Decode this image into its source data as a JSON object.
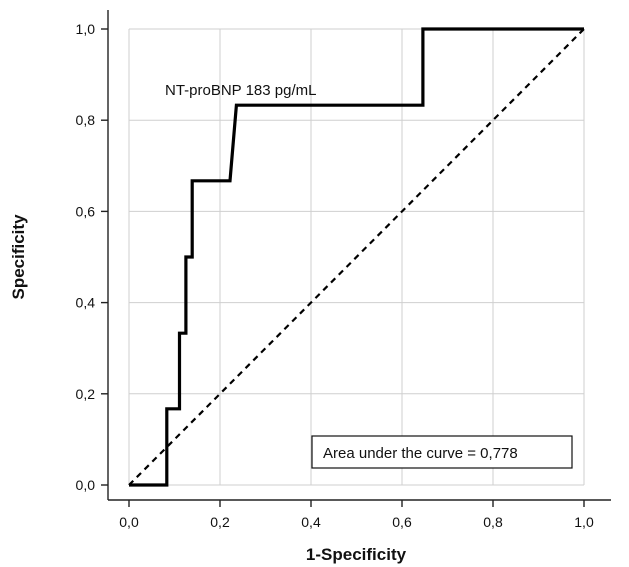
{
  "chart_data": {
    "type": "line",
    "title": "",
    "xlabel": "1-Specificity",
    "ylabel": "Specificity",
    "xlim": [
      0,
      1
    ],
    "ylim": [
      0,
      1
    ],
    "x_ticks": [
      0,
      0.2,
      0.4,
      0.6,
      0.8,
      1.0
    ],
    "y_ticks": [
      0,
      0.2,
      0.4,
      0.6,
      0.8,
      1.0
    ],
    "x_tick_labels": [
      "0,0",
      "0,2",
      "0,4",
      "0,6",
      "0,8",
      "1,0"
    ],
    "y_tick_labels": [
      "0,0",
      "0,2",
      "0,4",
      "0,6",
      "0,8",
      "1,0"
    ],
    "grid": true,
    "series": [
      {
        "style": "solid-step",
        "color": "#000000",
        "points": [
          [
            0.0,
            0.0
          ],
          [
            0.083,
            0.0
          ],
          [
            0.083,
            0.167
          ],
          [
            0.111,
            0.167
          ],
          [
            0.111,
            0.333
          ],
          [
            0.125,
            0.333
          ],
          [
            0.125,
            0.5
          ],
          [
            0.139,
            0.5
          ],
          [
            0.139,
            0.667
          ],
          [
            0.222,
            0.667
          ],
          [
            0.236,
            0.833
          ],
          [
            0.646,
            0.833
          ],
          [
            0.646,
            1.0
          ],
          [
            1.0,
            1.0
          ]
        ]
      },
      {
        "style": "dashed-diagonal",
        "color": "#000000",
        "points": [
          [
            0,
            0
          ],
          [
            1,
            1
          ]
        ]
      }
    ],
    "annotations": {
      "curve_label": "NT-proBNP 183 pg/mL",
      "auc_label": "Area under the curve = 0,778"
    }
  }
}
